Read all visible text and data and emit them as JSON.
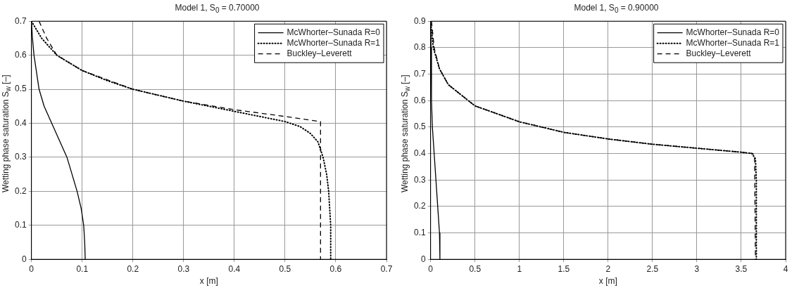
{
  "chart_data": [
    {
      "type": "line",
      "title": "Model 1, S$_{0}$ = 0.70000",
      "xlabel": "x [m]",
      "ylabel": "Wetting phase saturation S$_{w}$ [–]",
      "xlim": [
        0,
        0.7
      ],
      "ylim": [
        0,
        0.7
      ],
      "xticks": [
        0,
        0.1,
        0.2,
        0.3,
        0.4,
        0.5,
        0.6,
        0.7
      ],
      "yticks": [
        0,
        0.1,
        0.2,
        0.3,
        0.4,
        0.5,
        0.6,
        0.7
      ],
      "grid": true,
      "legend": "top right",
      "marker": "none",
      "series": [
        {
          "name": "McWhorter–Sunada R=0",
          "color": "#000000",
          "line_style": "solid",
          "x": [
            0,
            0.002,
            0.005,
            0.01,
            0.015,
            0.025,
            0.04,
            0.055,
            0.07,
            0.08,
            0.09,
            0.098,
            0.103,
            0.105,
            0.106
          ],
          "values": [
            0.7,
            0.65,
            0.6,
            0.55,
            0.5,
            0.45,
            0.4,
            0.35,
            0.3,
            0.25,
            0.2,
            0.15,
            0.1,
            0.05,
            0
          ]
        },
        {
          "name": "McWhorter–Sunada R=1",
          "color": "#000000",
          "line_style": "dotted",
          "x": [
            0,
            0.02,
            0.05,
            0.1,
            0.15,
            0.2,
            0.3,
            0.4,
            0.45,
            0.5,
            0.53,
            0.55,
            0.565,
            0.575,
            0.582,
            0.586,
            0.588,
            0.59,
            0.59,
            0.59
          ],
          "values": [
            0.7,
            0.65,
            0.6,
            0.555,
            0.525,
            0.5,
            0.465,
            0.435,
            0.42,
            0.405,
            0.39,
            0.37,
            0.345,
            0.3,
            0.25,
            0.2,
            0.15,
            0.1,
            0.05,
            0
          ]
        },
        {
          "name": "Buckley–Leverett",
          "color": "#000000",
          "line_style": "dashed",
          "x": [
            0.015,
            0.03,
            0.05,
            0.1,
            0.2,
            0.3,
            0.4,
            0.5,
            0.57,
            0.57
          ],
          "values": [
            0.7,
            0.65,
            0.6,
            0.555,
            0.5,
            0.465,
            0.44,
            0.42,
            0.405,
            0
          ]
        }
      ]
    },
    {
      "type": "line",
      "title": "Model 1, S$_{0}$ = 0.90000",
      "xlabel": "x [m]",
      "ylabel": "Wetting phase saturation S$_{w}$ [–]",
      "xlim": [
        0,
        4
      ],
      "ylim": [
        0,
        0.9
      ],
      "xticks": [
        0,
        0.5,
        1,
        1.5,
        2,
        2.5,
        3,
        3.5,
        4
      ],
      "yticks": [
        0,
        0.1,
        0.2,
        0.3,
        0.4,
        0.5,
        0.6,
        0.7,
        0.8,
        0.9
      ],
      "grid": true,
      "legend": "top right",
      "marker": "none",
      "series": [
        {
          "name": "McWhorter–Sunada R=0",
          "color": "#000000",
          "line_style": "solid",
          "x": [
            0,
            0.005,
            0.01,
            0.02,
            0.04,
            0.06,
            0.08,
            0.1,
            0.105
          ],
          "values": [
            0.9,
            0.8,
            0.6,
            0.5,
            0.4,
            0.3,
            0.2,
            0.1,
            0
          ]
        },
        {
          "name": "McWhorter–Sunada R=1",
          "color": "#000000",
          "line_style": "dotted",
          "x": [
            0,
            0.03,
            0.1,
            0.2,
            0.5,
            1,
            1.5,
            2,
            2.5,
            3,
            3.5,
            3.62,
            3.66,
            3.67,
            3.67,
            3.67
          ],
          "values": [
            0.9,
            0.8,
            0.72,
            0.66,
            0.58,
            0.52,
            0.48,
            0.455,
            0.435,
            0.42,
            0.405,
            0.4,
            0.38,
            0.3,
            0.1,
            0
          ]
        },
        {
          "name": "Buckley–Leverett",
          "color": "#000000",
          "line_style": "dashed",
          "x": [
            0.01,
            0.04,
            0.1,
            0.2,
            0.5,
            1,
            1.5,
            2,
            2.5,
            3,
            3.5,
            3.63,
            3.65,
            3.66
          ],
          "values": [
            0.9,
            0.8,
            0.72,
            0.66,
            0.58,
            0.52,
            0.48,
            0.455,
            0.435,
            0.42,
            0.405,
            0.4,
            0.39,
            0
          ]
        }
      ]
    }
  ]
}
